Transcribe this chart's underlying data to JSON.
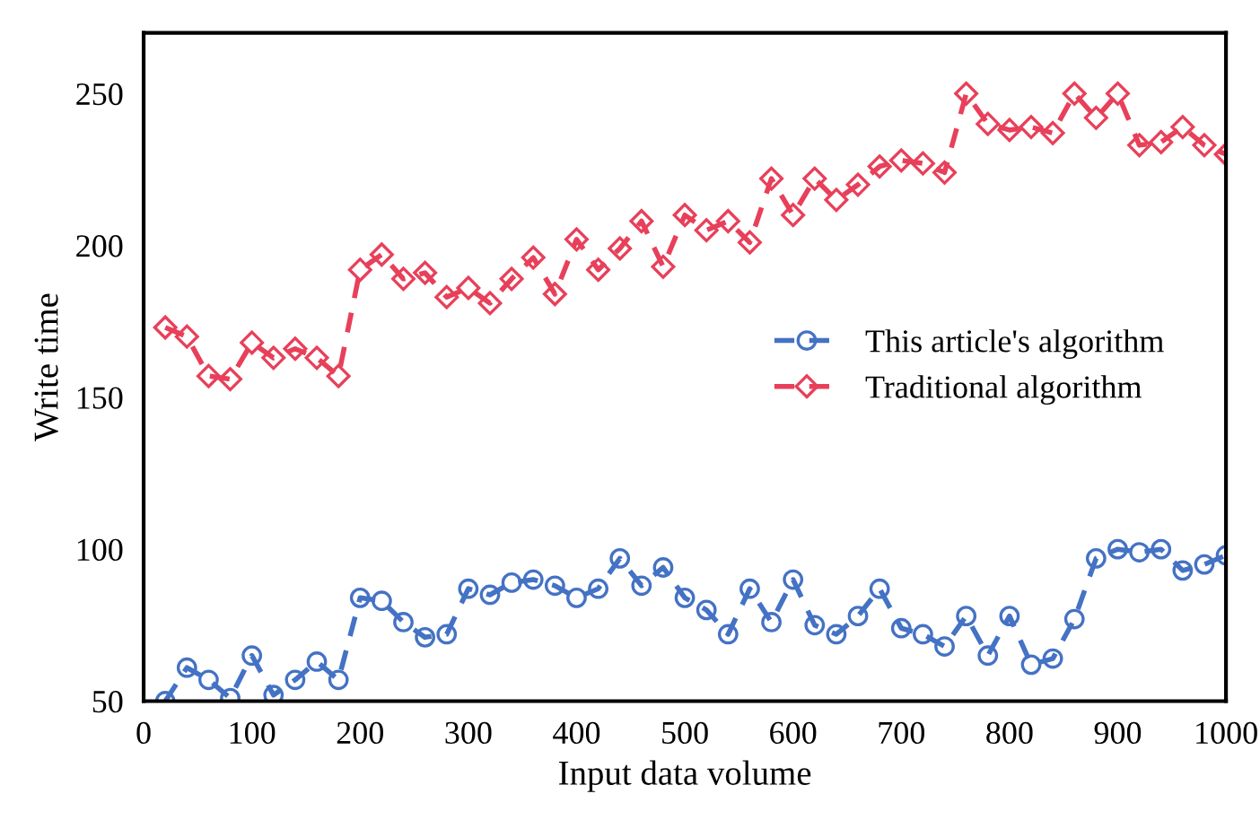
{
  "chart_data": {
    "type": "line",
    "xlabel": "Input data volume",
    "ylabel": "Write time",
    "x": [
      20,
      40,
      60,
      80,
      100,
      120,
      140,
      160,
      180,
      200,
      220,
      240,
      260,
      280,
      300,
      320,
      340,
      360,
      380,
      400,
      420,
      440,
      460,
      480,
      500,
      520,
      540,
      560,
      580,
      600,
      620,
      640,
      660,
      680,
      700,
      720,
      740,
      760,
      780,
      800,
      820,
      840,
      860,
      880,
      900,
      920,
      940,
      960,
      980,
      1000
    ],
    "series": [
      {
        "name": "This article's algorithm",
        "color": "#4472c4",
        "marker": "circle",
        "values": [
          50,
          61,
          57,
          51,
          65,
          52,
          57,
          63,
          57,
          84,
          83,
          76,
          71,
          72,
          87,
          85,
          89,
          90,
          88,
          84,
          87,
          97,
          88,
          94,
          84,
          80,
          72,
          87,
          76,
          90,
          75,
          72,
          78,
          87,
          74,
          72,
          68,
          78,
          65,
          78,
          62,
          64,
          77,
          97,
          100,
          99,
          100,
          93,
          95,
          98
        ]
      },
      {
        "name": "Traditional algorithm",
        "color": "#e8405a",
        "marker": "diamond",
        "values": [
          173,
          170,
          157,
          156,
          168,
          163,
          166,
          163,
          157,
          192,
          197,
          189,
          191,
          183,
          186,
          181,
          189,
          196,
          184,
          202,
          192,
          199,
          208,
          193,
          210,
          205,
          208,
          201,
          222,
          210,
          222,
          215,
          220,
          226,
          228,
          227,
          224,
          250,
          240,
          238,
          239,
          237,
          250,
          242,
          250,
          233,
          234,
          239,
          233,
          230
        ]
      }
    ],
    "line_style": "dashed",
    "xlim": [
      0,
      1000
    ],
    "xticks": [
      0,
      100,
      200,
      300,
      400,
      500,
      600,
      700,
      800,
      900,
      1000
    ],
    "ylim": [
      50,
      270
    ],
    "yticks": [
      50,
      100,
      150,
      200,
      250
    ],
    "grid": false,
    "legend": "right"
  }
}
